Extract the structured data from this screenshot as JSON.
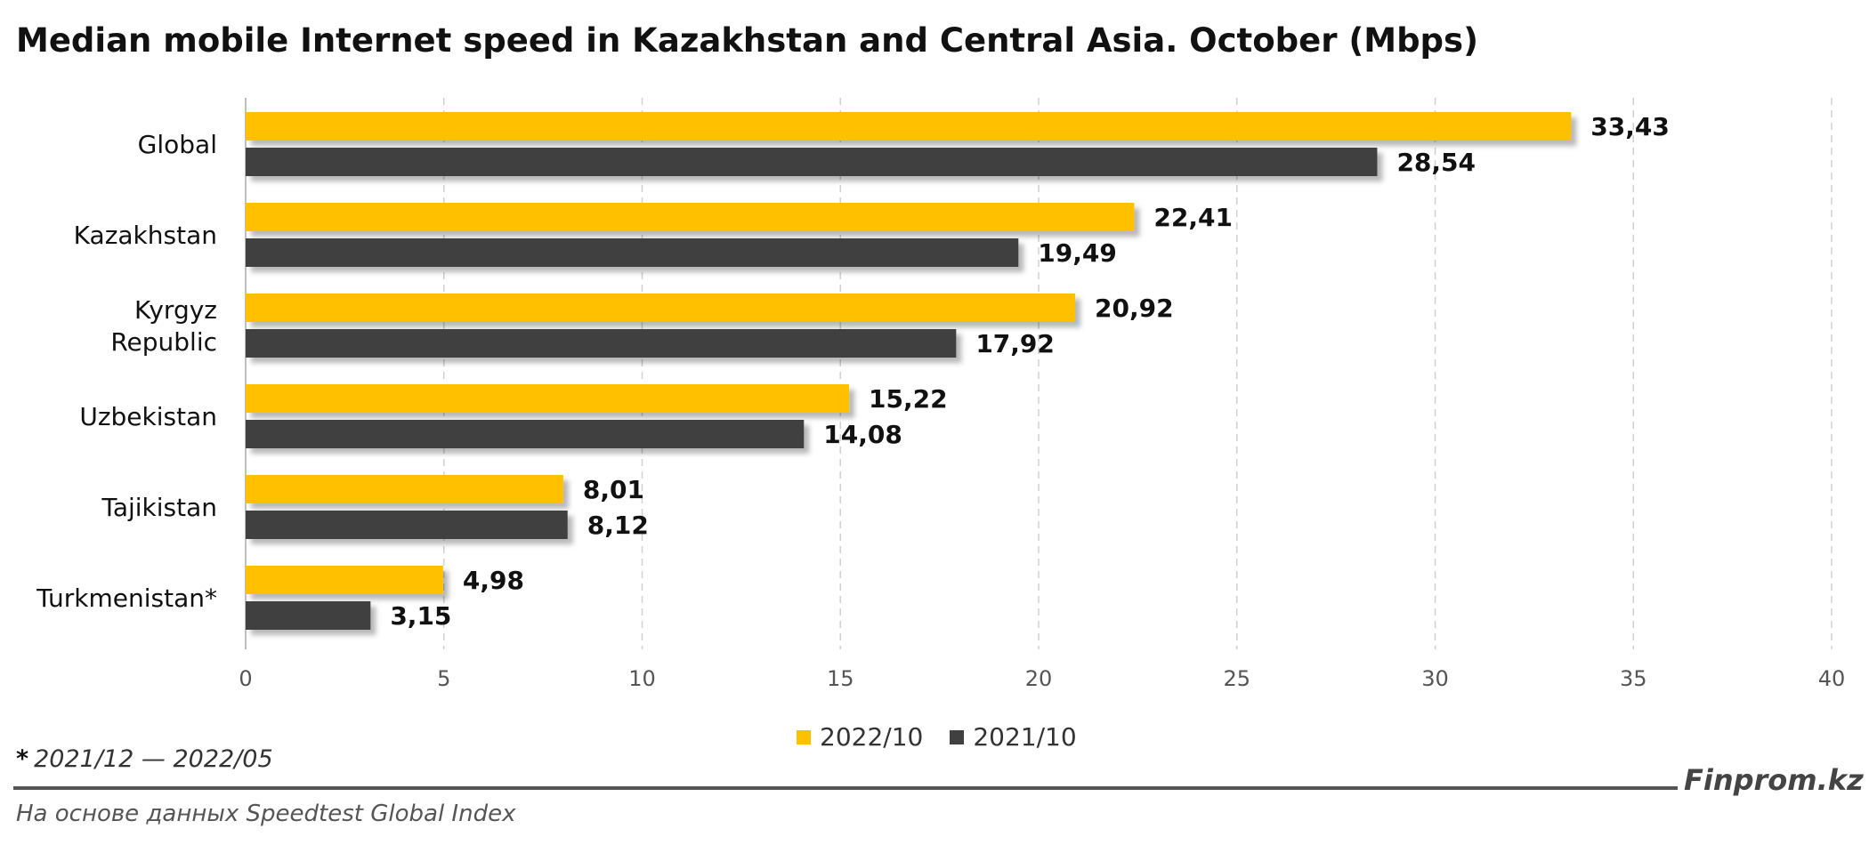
{
  "colors": {
    "series_2022": "#FFC000",
    "series_2021": "#404040",
    "grid": "#D0D0D0",
    "axis": "#BFBFBF",
    "rule": "#555555"
  },
  "chart_data": {
    "type": "bar",
    "orientation": "horizontal",
    "title": "Median mobile Internet speed in Kazakhstan and Central Asia. October (Mbps)",
    "categories": [
      [
        "Global"
      ],
      [
        "Kazakhstan"
      ],
      [
        "Kyrgyz",
        "Republic"
      ],
      [
        "Uzbekistan"
      ],
      [
        "Tajikistan"
      ],
      [
        "Turkmenistan*"
      ]
    ],
    "series": [
      {
        "name": "2022/10",
        "color": "#FFC000",
        "values": [
          33.43,
          22.41,
          20.92,
          15.22,
          8.01,
          4.98
        ],
        "labels": [
          "33,43",
          "22,41",
          "20,92",
          "15,22",
          "8,01",
          "4,98"
        ]
      },
      {
        "name": "2021/10",
        "color": "#404040",
        "values": [
          28.54,
          19.49,
          17.92,
          14.08,
          8.12,
          3.15
        ],
        "labels": [
          "28,54",
          "19,49",
          "17,92",
          "14,08",
          "8,12",
          "3,15"
        ]
      }
    ],
    "xlim": [
      0,
      40
    ],
    "xticks": [
      0,
      5,
      10,
      15,
      20,
      25,
      30,
      35,
      40
    ],
    "grid": "vertical dashed",
    "legend": "bottom-center"
  },
  "footnote": {
    "mark": "*",
    "text": "2021/12 — 2022/05"
  },
  "brand": "Finprom.kz",
  "source": "На основе данных Speedtest Global Index"
}
